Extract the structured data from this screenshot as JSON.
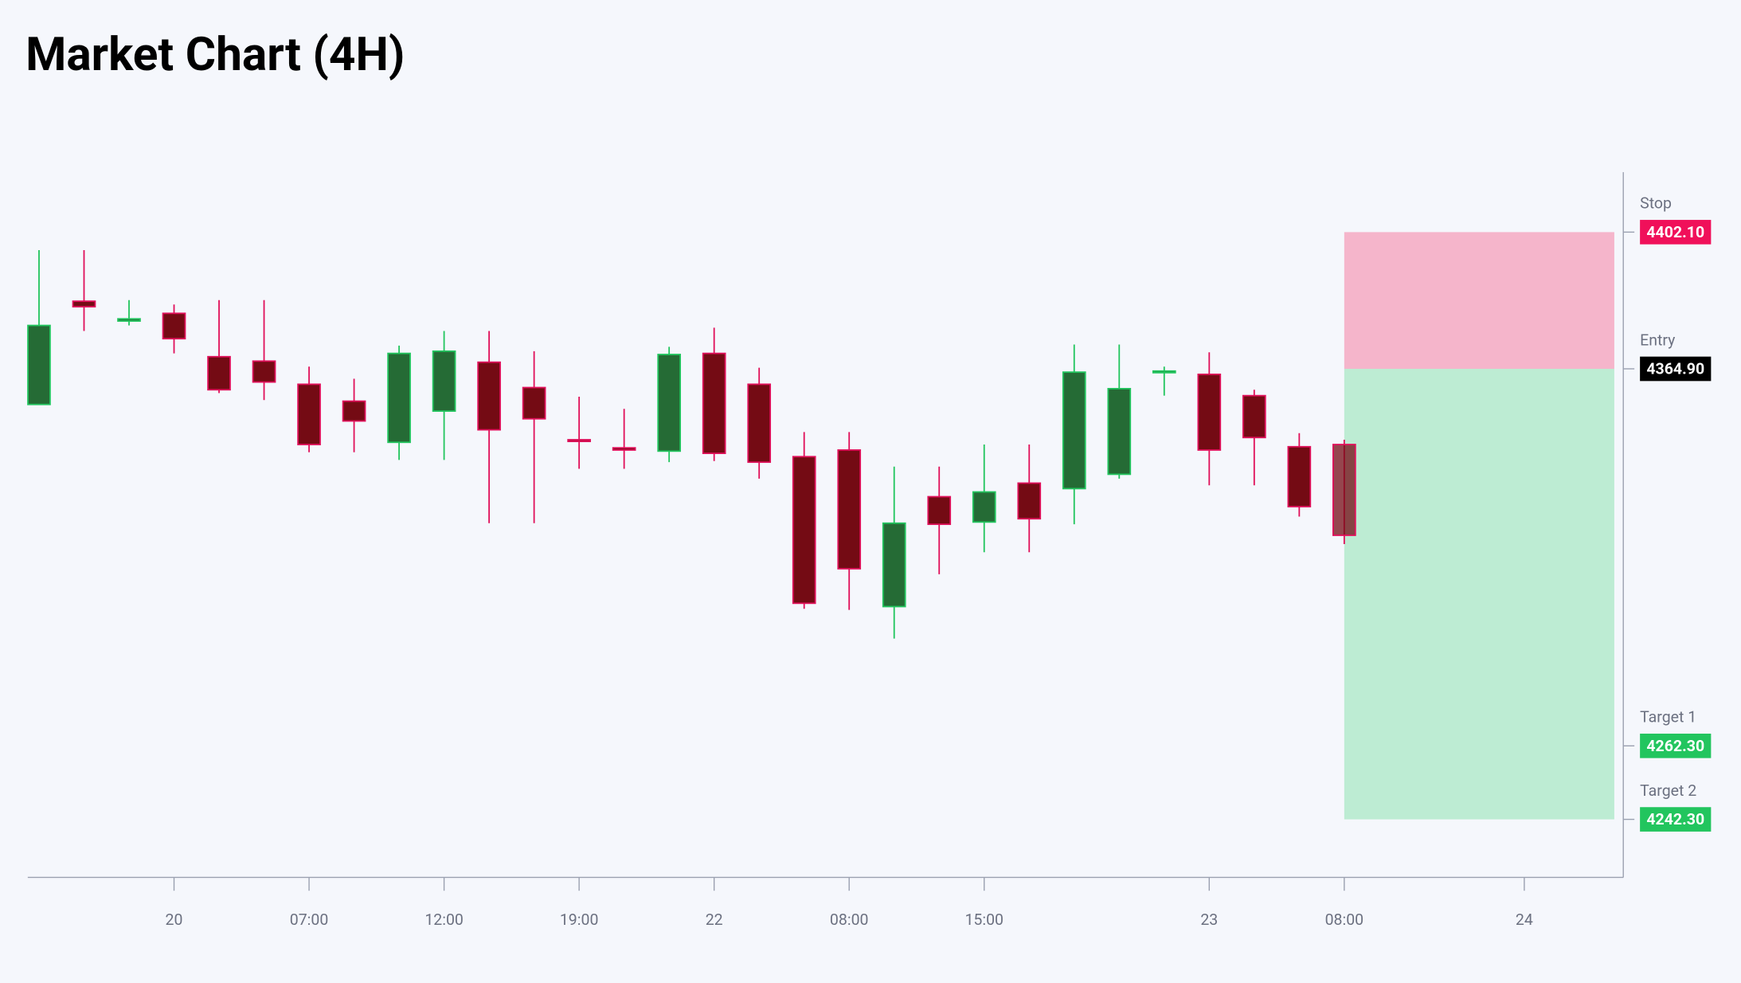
{
  "chart_data": {
    "type": "candlestick",
    "title": "Market Chart (4H)",
    "x": [
      0,
      1,
      2,
      3,
      4,
      5,
      6,
      7,
      8,
      9,
      10,
      11,
      12,
      13,
      14,
      15,
      16,
      17,
      18,
      19,
      20,
      21,
      22,
      23,
      24,
      25,
      26,
      27,
      28,
      29
    ],
    "open": [
      4355.2,
      4383.3,
      4377.9,
      4380.0,
      4368.2,
      4367.0,
      4360.7,
      4356.1,
      4344.9,
      4353.4,
      4366.7,
      4359.8,
      4345.6,
      4343.4,
      4342.5,
      4369.1,
      4360.7,
      4341.0,
      4342.8,
      4300.2,
      4330.1,
      4323.2,
      4333.8,
      4332.3,
      4336.2,
      4364.0,
      4363.4,
      4357.6,
      4343.7,
      4344.3
    ],
    "high": [
      4397.2,
      4397.2,
      4383.6,
      4382.4,
      4383.6,
      4383.6,
      4365.5,
      4362.2,
      4371.2,
      4375.2,
      4375.2,
      4369.7,
      4357.3,
      4354.0,
      4370.9,
      4376.1,
      4365.2,
      4347.7,
      4347.7,
      4338.3,
      4338.3,
      4344.3,
      4344.3,
      4371.5,
      4371.5,
      4365.5,
      4369.4,
      4359.2,
      4347.4,
      4345.6
    ],
    "low": [
      4355.2,
      4375.2,
      4376.7,
      4369.1,
      4358.3,
      4356.4,
      4342.2,
      4342.2,
      4340.1,
      4340.1,
      4322.9,
      4322.9,
      4337.7,
      4337.7,
      4339.5,
      4339.8,
      4335.0,
      4299.6,
      4299.3,
      4291.5,
      4309.0,
      4315.0,
      4315.0,
      4322.6,
      4335.0,
      4357.6,
      4333.2,
      4333.2,
      4324.7,
      4317.2
    ],
    "close": [
      4376.7,
      4381.8,
      4378.5,
      4373.1,
      4359.2,
      4361.3,
      4344.3,
      4350.7,
      4369.1,
      4369.7,
      4348.3,
      4351.3,
      4345.3,
      4342.8,
      4368.8,
      4341.9,
      4339.5,
      4301.1,
      4310.5,
      4322.9,
      4322.6,
      4331.4,
      4324.1,
      4364.0,
      4359.5,
      4364.3,
      4342.8,
      4346.2,
      4327.4,
      4319.6
    ],
    "up_color": "#256b35",
    "up_edge": "#22c55e",
    "down_color": "#740b14",
    "down_edge": "#e0105a",
    "xlim": [
      -0.25,
      35.2
    ],
    "ylim": [
      4226.5,
      4418.4
    ],
    "xticks": [
      {
        "value": 3,
        "label": "20"
      },
      {
        "value": 6,
        "label": "07:00"
      },
      {
        "value": 9,
        "label": "12:00"
      },
      {
        "value": 12,
        "label": "19:00"
      },
      {
        "value": 15,
        "label": "22"
      },
      {
        "value": 18,
        "label": "08:00"
      },
      {
        "value": 21,
        "label": "15:00"
      },
      {
        "value": 26,
        "label": "23"
      },
      {
        "value": 29,
        "label": "08:00"
      },
      {
        "value": 33,
        "label": "24"
      }
    ],
    "levels": [
      {
        "name": "Stop",
        "value": 4402.1,
        "label": "4402.10",
        "color": "#f0105a"
      },
      {
        "name": "Entry",
        "value": 4364.9,
        "label": "4364.90",
        "color": "#000000"
      },
      {
        "name": "Target 1",
        "value": 4262.3,
        "label": "4262.30",
        "color": "#22c55e"
      },
      {
        "name": "Target 2",
        "value": 4242.3,
        "label": "4242.30",
        "color": "#22c55e"
      }
    ],
    "zone_start": 29,
    "zone_end": 35,
    "risk_color": "#f5b5cb",
    "reward_color": "#bdecd3"
  }
}
